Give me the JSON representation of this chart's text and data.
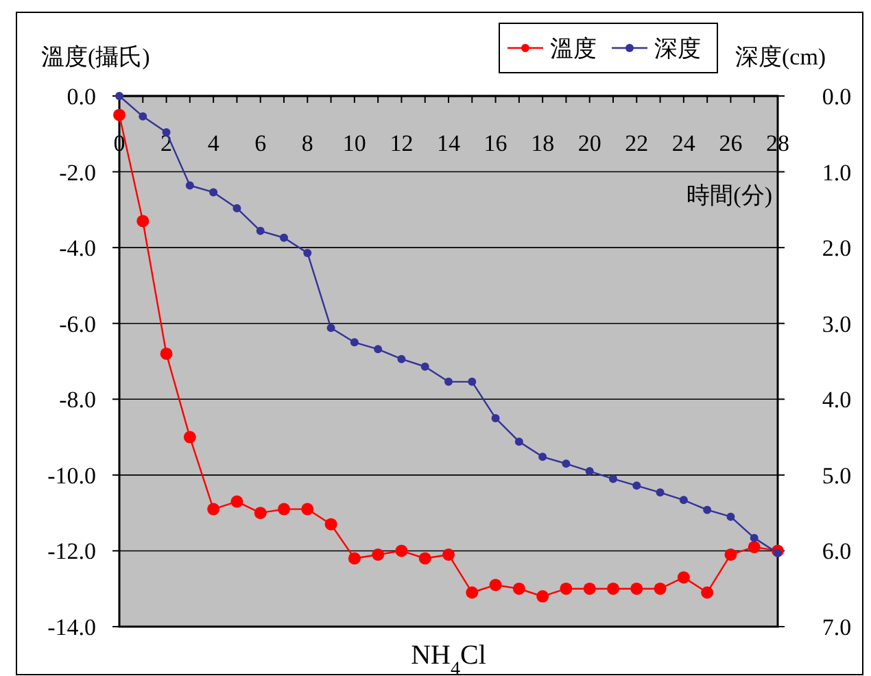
{
  "chart_data": {
    "type": "line",
    "title": "NH$_{4}$Cl",
    "xlabel": "時間(分)",
    "ylabel": "溫度(攝氏)",
    "y2label": "深度(cm)",
    "x": [
      0,
      1,
      2,
      3,
      4,
      5,
      6,
      7,
      8,
      9,
      10,
      11,
      12,
      13,
      14,
      15,
      16,
      17,
      18,
      19,
      20,
      21,
      22,
      23,
      24,
      25,
      26,
      27,
      28
    ],
    "series": [
      {
        "name": "溫度",
        "color": "#ff0000",
        "values": [
          -0.5,
          -3.3,
          -6.8,
          -9.0,
          -10.9,
          -10.7,
          -11.0,
          -10.9,
          -10.9,
          -11.3,
          -12.2,
          -12.1,
          -12.0,
          -12.2,
          -12.1,
          -13.1,
          -12.9,
          -13.0,
          -13.2,
          -13.0,
          -13.0,
          -13.0,
          -13.0,
          -13.0,
          -12.7,
          -13.1,
          -12.1,
          -11.9,
          -12.0
        ]
      },
      {
        "name": "深度",
        "color": "#333399",
        "axis": "y2",
        "values": [
          0,
          0.27,
          0.48,
          1.18,
          1.27,
          1.48,
          1.78,
          1.87,
          2.07,
          3.06,
          3.25,
          3.34,
          3.47,
          3.57,
          3.77,
          3.77,
          4.25,
          4.56,
          4.76,
          4.85,
          4.95,
          5.05,
          5.14,
          5.23,
          5.33,
          5.46,
          5.55,
          5.83,
          6.03
        ]
      }
    ],
    "xlim": [
      0,
      28
    ],
    "xticks": [
      0,
      {
        "value": 1,
        "label": null
      },
      2,
      {
        "value": 3,
        "label": null
      },
      4,
      {
        "value": 5,
        "label": null
      },
      6,
      {
        "value": 7,
        "label": null
      },
      8,
      {
        "value": 9,
        "label": null
      },
      10,
      {
        "value": 11,
        "label": null
      },
      12,
      {
        "value": 13,
        "label": null
      },
      14,
      {
        "value": 15,
        "label": null
      },
      16,
      {
        "value": 17,
        "label": null
      },
      18,
      {
        "value": 19,
        "label": null
      },
      20,
      {
        "value": 21,
        "label": null
      },
      22,
      {
        "value": 23,
        "label": null
      },
      24,
      {
        "value": 25,
        "label": null
      },
      26,
      {
        "value": 27,
        "label": null
      },
      28
    ],
    "ylim": [
      -14,
      0
    ],
    "yticks": [
      {
        "value": -14,
        "label": "-14.0"
      },
      {
        "value": -12,
        "label": "-12.0"
      },
      {
        "value": -10,
        "label": "-10.0"
      },
      {
        "value": -8,
        "label": "-8.0"
      },
      {
        "value": -6,
        "label": "-6.0"
      },
      {
        "value": -4,
        "label": "-4.0"
      },
      {
        "value": -2,
        "label": "-2.0"
      },
      {
        "value": 0,
        "label": "0.0"
      }
    ],
    "y2lim": [
      7,
      0
    ],
    "y2ticks": [
      {
        "value": 0,
        "label": "0.0"
      },
      {
        "value": 1,
        "label": "1.0"
      },
      {
        "value": 2,
        "label": "2.0"
      },
      {
        "value": 3,
        "label": "3.0"
      },
      {
        "value": 4,
        "label": "4.0"
      },
      {
        "value": 5,
        "label": "5.0"
      },
      {
        "value": 6,
        "label": "6.0"
      },
      {
        "value": 7,
        "label": "7.0"
      }
    ],
    "grid": "y",
    "legend": "top right",
    "marker": "circle",
    "line_style": "solid"
  }
}
